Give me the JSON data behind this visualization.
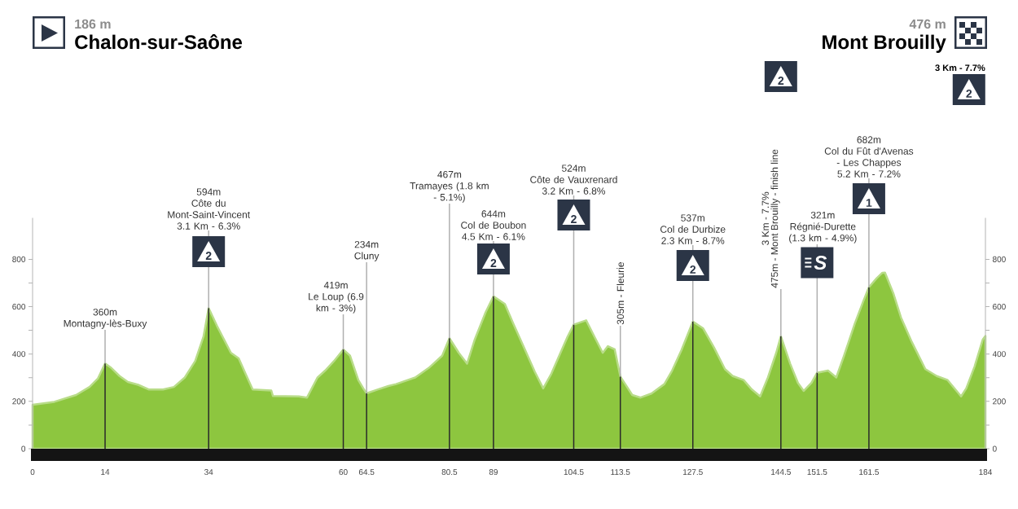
{
  "chart_data": {
    "type": "area",
    "series": [
      {
        "color": "#8DC63F",
        "x": [
          0,
          4.2,
          8.4,
          11.0,
          12.6,
          14,
          15.2,
          16.8,
          18.4,
          20.4,
          22.5,
          25.2,
          27.3,
          29.4,
          31.4,
          33.0,
          34,
          35.6,
          38.3,
          39.8,
          41.2,
          42.5,
          46.1,
          46.4,
          51.4,
          53.0,
          55.0,
          56.5,
          58.2,
          60,
          61.3,
          62.9,
          64.0,
          64.5,
          66.6,
          68.7,
          70.2,
          73.9,
          76.5,
          79.1,
          80.5,
          82.3,
          83.9,
          85.4,
          87.5,
          89,
          91.2,
          92.8,
          94.9,
          97.0,
          98.6,
          100.1,
          101.7,
          103.3,
          104.5,
          106.9,
          108.5,
          110.1,
          111.1,
          112.4,
          113.5,
          115.8,
          117.4,
          119.5,
          122.0,
          123.5,
          125.3,
          127.5,
          129.5,
          131.6,
          133.7,
          135.2,
          137.3,
          138.9,
          140.5,
          142.0,
          143.6,
          144.5,
          146.3,
          147.8,
          148.9,
          150.4,
          151.5,
          153.6,
          155.2,
          156.7,
          158.8,
          160.4,
          161.5,
          163.0,
          164.1,
          164.6,
          166.2,
          167.7,
          169.8,
          172.4,
          174.6,
          176.7,
          178.2,
          179.3,
          180.3,
          181.9,
          183.5,
          184
        ],
        "values": [
          186,
          198,
          227,
          261,
          296,
          360,
          341,
          307,
          282,
          270,
          250,
          250,
          261,
          301,
          370,
          473,
          594,
          519,
          405,
          382,
          313,
          250,
          246,
          223,
          221,
          216,
          300,
          330,
          370,
          419,
          393,
          290,
          250,
          234,
          250,
          265,
          273,
          301,
          341,
          393,
          467,
          405,
          359,
          462,
          577,
          644,
          611,
          530,
          427,
          324,
          255,
          313,
          393,
          473,
          524,
          542,
          473,
          405,
          433,
          420,
          305,
          227,
          216,
          233,
          273,
          330,
          416,
          537,
          508,
          427,
          336,
          307,
          290,
          250,
          221,
          301,
          405,
          475,
          359,
          278,
          244,
          278,
          321,
          330,
          301,
          393,
          530,
          622,
          682,
          720,
          743,
          744,
          657,
          554,
          450,
          336,
          307,
          290,
          250,
          221,
          255,
          347,
          462,
          476
        ]
      },
      {
        "type": "bar",
        "color": "#2A2A2A",
        "x": [
          14,
          34,
          60,
          64.5,
          80.5,
          89,
          104.5,
          113.5,
          127.5,
          144.5,
          151.5,
          161.5
        ],
        "values": [
          360,
          594,
          419,
          234,
          467,
          644,
          524,
          305,
          537,
          475,
          321,
          682
        ]
      }
    ],
    "xlim": [
      0,
      184
    ],
    "ylim": [
      0,
      975
    ],
    "xticks": [
      0,
      14,
      34,
      60,
      64.5,
      80.5,
      89,
      104.5,
      113.5,
      127.5,
      144.5,
      151.5,
      161.5,
      184
    ],
    "yticks": [
      0,
      {
        "value": 100,
        "label": null
      },
      200,
      {
        "value": 300,
        "label": null
      },
      400,
      {
        "value": 500,
        "label": null
      },
      600,
      {
        "value": 700,
        "label": null
      },
      800
    ],
    "y2lim": [
      0,
      975
    ],
    "y2ticks": [
      0,
      {
        "value": 100,
        "label": null
      },
      200,
      {
        "value": 300,
        "label": null
      },
      400,
      {
        "value": 500,
        "label": null
      },
      600,
      {
        "value": 700,
        "label": null
      },
      800
    ],
    "annotations": [
      "186 m",
      "Chalon-sur-Saône",
      "476 m",
      "Mont Brouilly",
      {
        "text": "360m\nMontagny-lès-Buxy",
        "x": 14,
        "y": 360
      },
      {
        "text": "594m\nCôte du\nMont-Saint-Vincent\n3.1 Km - 6.3%",
        "x": 34,
        "y": 594
      },
      "2",
      {
        "text": "419m\nLe Loup (6.9\nkm - 3%)",
        "x": 60,
        "y": 419
      },
      {
        "text": "234m\nCluny",
        "x": 64.5,
        "y": 234
      },
      {
        "text": "467m\nTramayes (1.8 km\n- 5.1%)",
        "x": 80.5,
        "y": 467
      },
      {
        "text": "644m\nCol de Boubon\n4.5 Km - 6.1%",
        "x": 89,
        "y": 644
      },
      "2",
      {
        "text": "524m\nCôte de Vauxrenard\n3.2 Km - 6.8%",
        "x": 104.5,
        "y": 524
      },
      "2",
      {
        "text": "305m - Fleurie",
        "x": 113.5,
        "y": 305
      },
      {
        "text": "537m\nCol de Durbize\n2.3 Km - 8.7%",
        "x": 127.5,
        "y": 537
      },
      "2",
      {
        "text": "475m - Mont Brouilly - finish line",
        "x": 144.5,
        "y": 475
      },
      "3 Km - 7.7%",
      "2",
      {
        "text": "321m\nRégnié-Durette\n(1.3 km - 4.9%)",
        "x": 151.5,
        "y": 321
      },
      "S",
      {
        "text": "682m\nCol du Fût d'Avenas\n- Les Chappes\n5.2 Km - 7.2%",
        "x": 161.5,
        "y": 682
      },
      "1",
      "3 Km - 7.7%",
      "2"
    ]
  }
}
